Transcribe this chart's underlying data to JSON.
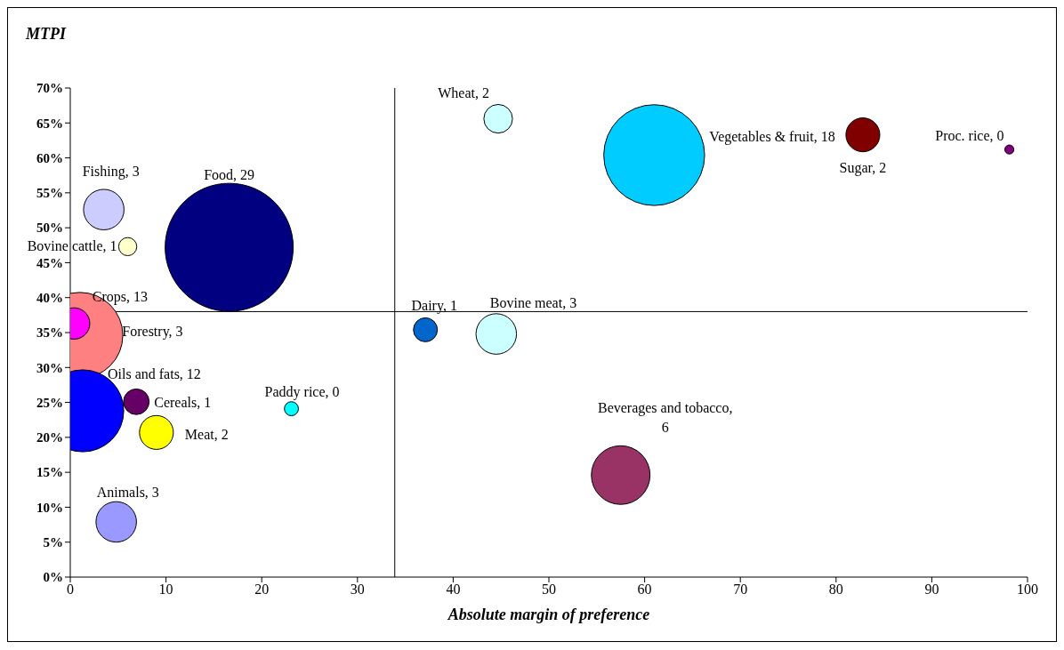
{
  "chart_data": {
    "type": "bubble",
    "xlabel": "Absolute margin of preference",
    "ylabel": "MTPI",
    "x": [
      16.6,
      61.0,
      44.7,
      82.8,
      98.1,
      3.5,
      6.0,
      1.0,
      0.4,
      37.1,
      44.5,
      1.3,
      6.9,
      9.0,
      23.1,
      57.5,
      4.8
    ],
    "values": [
      47.2,
      60.4,
      65.6,
      63.3,
      61.2,
      52.6,
      47.3,
      34.6,
      36.3,
      35.4,
      34.8,
      23.8,
      25.1,
      20.7,
      24.1,
      14.6,
      7.9
    ],
    "sizes": [
      1,
      0.62,
      0.05,
      0.07,
      0.005,
      0.1,
      0.02,
      0.45,
      0.06,
      0.035,
      0.1,
      0.41,
      0.04,
      0.07,
      0.012,
      0.21,
      0.1
    ],
    "colors": [
      "#000080",
      "#00ccff",
      "#ccffff",
      "#800000",
      "#800080",
      "#ccccff",
      "#ffffcc",
      "#ff8080",
      "#ff00ff",
      "#0066cc",
      "#ccffff",
      "#0000ff",
      "#660066",
      "#ffff00",
      "#00ffff",
      "#993366",
      "#9999ff"
    ],
    "xlim": [
      0,
      100
    ],
    "xticks": [
      0,
      10,
      20,
      30,
      40,
      50,
      60,
      70,
      80,
      90,
      100
    ],
    "ylim": [
      0,
      70
    ],
    "yticks": [
      {
        "value": 0,
        "label": "0%"
      },
      {
        "value": 5,
        "label": "5%"
      },
      {
        "value": 10,
        "label": "10%"
      },
      {
        "value": 15,
        "label": "15%"
      },
      {
        "value": 20,
        "label": "20%"
      },
      {
        "value": 25,
        "label": "25%"
      },
      {
        "value": 30,
        "label": "30%"
      },
      {
        "value": 35,
        "label": "35%"
      },
      {
        "value": 40,
        "label": "40%"
      },
      {
        "value": 45,
        "label": "45%"
      },
      {
        "value": 50,
        "label": "50%"
      },
      {
        "value": 55,
        "label": "55%"
      },
      {
        "value": 60,
        "label": "60%"
      },
      {
        "value": 65,
        "label": "65%"
      },
      {
        "value": 70,
        "label": "70%"
      }
    ],
    "ref_lines": [
      {
        "axis": "x",
        "value": 33.9
      },
      {
        "axis": "y",
        "value": 38.0
      }
    ],
    "annotations": [
      "Food, 29",
      "Vegetables & fruit, 18",
      {
        "text": "Wheat, 2",
        "x": 44.7,
        "y": 65.6
      },
      {
        "text": "Sugar, 2",
        "x": 82.8,
        "y": 63.3
      },
      {
        "text": "Proc. rice, 0",
        "x": 98.1,
        "y": 61.2
      },
      {
        "text": "Fishing, 3",
        "x": 3.5,
        "y": 52.6
      },
      {
        "text": "Bovine cattle, 1",
        "x": 6.0,
        "y": 47.3
      },
      {
        "text": "Crops, 13",
        "x": 1.0,
        "y": 34.6
      },
      "Forestry, 3",
      {
        "text": "Dairy, 1",
        "x": 37.1,
        "y": 35.4
      },
      {
        "text": "Bovine meat, 3",
        "x": 44.5,
        "y": 34.8
      },
      {
        "text": "Oils and fats, 12",
        "x": 1.3,
        "y": 23.8
      },
      {
        "text": "Cereals, 1",
        "x": 6.9,
        "y": 25.1
      },
      {
        "text": "Meat, 2",
        "x": 9.0,
        "y": 20.7
      },
      {
        "text": "Paddy rice, 0",
        "x": 23.1,
        "y": 24.1
      },
      {
        "text": "Beverages and tobacco,\n6",
        "x": 57.5,
        "y": 14.6
      },
      {
        "text": "Animals, 3",
        "x": 4.8,
        "y": 7.9
      }
    ]
  }
}
